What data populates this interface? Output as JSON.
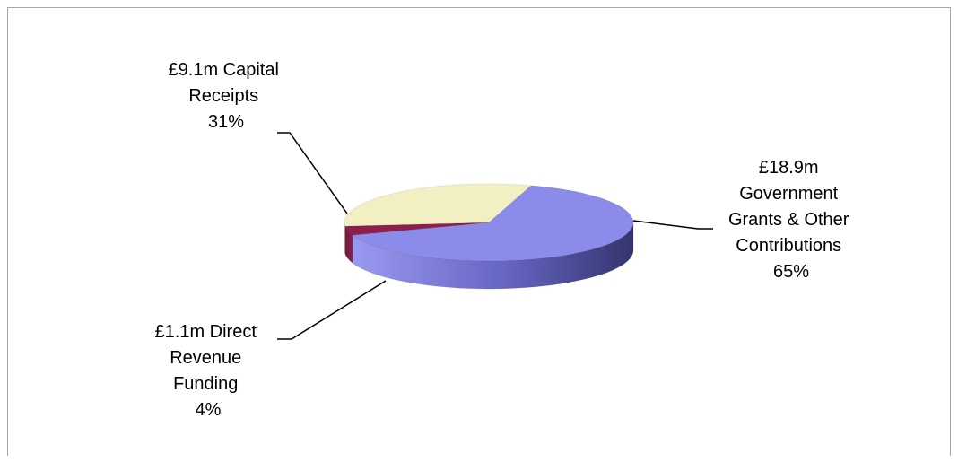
{
  "chart_data": {
    "type": "pie",
    "style": "3d",
    "slices": [
      {
        "name": "Government Grants & Other Contributions",
        "value": 18.9,
        "percent": 65,
        "color": "#8b8bea",
        "label_lines": [
          "£18.9m",
          "Government",
          "Grants & Other",
          "Contributions",
          "65%"
        ]
      },
      {
        "name": "Direct Revenue Funding",
        "value": 1.1,
        "percent": 4,
        "color": "#8c1f4e",
        "label_lines": [
          "£1.1m Direct",
          "Revenue",
          "Funding",
          "4%"
        ]
      },
      {
        "name": "Capital Receipts",
        "value": 9.1,
        "percent": 31,
        "color": "#f2f0c2",
        "label_lines": [
          "£9.1m Capital",
          "Receipts",
          "31%"
        ]
      }
    ],
    "legend": "none"
  }
}
